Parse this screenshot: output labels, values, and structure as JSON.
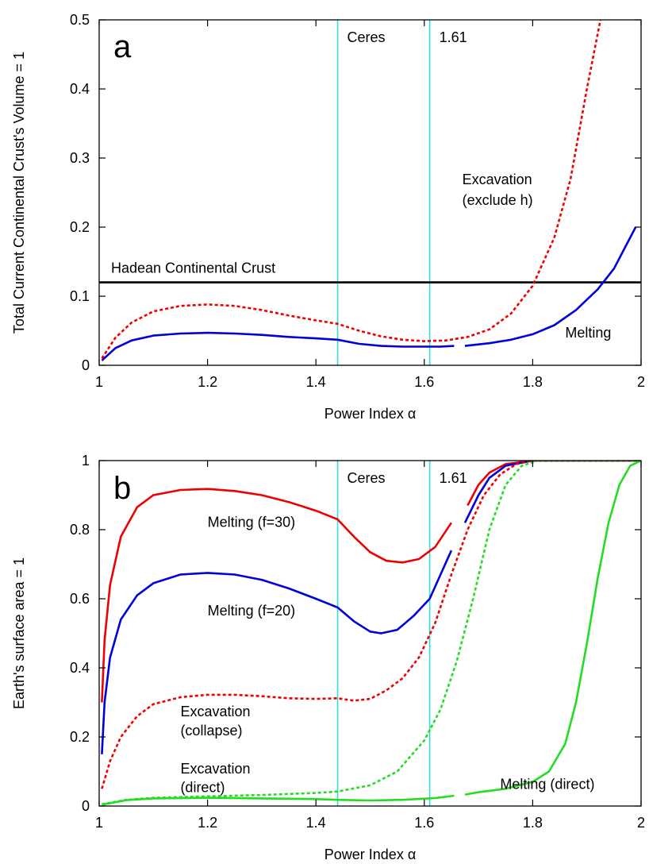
{
  "chart_data": [
    {
      "type": "line",
      "panel_label": "a",
      "xlabel": "Power Index α",
      "ylabel": "Total Current Continental Crust's Volume = 1",
      "xlim": [
        1,
        2
      ],
      "ylim": [
        0,
        0.5
      ],
      "xticks": [
        1,
        1.2,
        1.4,
        1.6,
        1.8,
        2
      ],
      "yticks": [
        0,
        0.1,
        0.2,
        0.3,
        0.4,
        0.5
      ],
      "vlines": [
        {
          "x": 1.44,
          "label": "Ceres",
          "color": "#33dddd"
        },
        {
          "x": 1.61,
          "label": "1.61",
          "color": "#33dddd"
        }
      ],
      "hlines": [
        {
          "y": 0.12,
          "label": "Hadean Continental Crust",
          "color": "#000000"
        }
      ],
      "series": [
        {
          "name": "Excavation (exclude h)",
          "color": "#ee0000",
          "dash": true,
          "segments": [
            [
              [
                1.005,
                0.01
              ],
              [
                1.03,
                0.04
              ],
              [
                1.06,
                0.062
              ],
              [
                1.1,
                0.078
              ],
              [
                1.15,
                0.086
              ],
              [
                1.2,
                0.088
              ],
              [
                1.25,
                0.086
              ],
              [
                1.3,
                0.08
              ],
              [
                1.35,
                0.072
              ],
              [
                1.4,
                0.065
              ],
              [
                1.44,
                0.06
              ],
              [
                1.48,
                0.05
              ],
              [
                1.52,
                0.042
              ],
              [
                1.56,
                0.037
              ],
              [
                1.6,
                0.035
              ],
              [
                1.64,
                0.036
              ],
              [
                1.68,
                0.041
              ],
              [
                1.72,
                0.052
              ],
              [
                1.76,
                0.075
              ],
              [
                1.8,
                0.115
              ],
              [
                1.84,
                0.185
              ],
              [
                1.87,
                0.27
              ],
              [
                1.9,
                0.4
              ],
              [
                1.925,
                0.5
              ]
            ]
          ]
        },
        {
          "name": "Melting",
          "color": "#0000dd",
          "dash": false,
          "segments": [
            [
              [
                1.005,
                0.007
              ],
              [
                1.03,
                0.025
              ],
              [
                1.06,
                0.036
              ],
              [
                1.1,
                0.043
              ],
              [
                1.15,
                0.046
              ],
              [
                1.2,
                0.047
              ],
              [
                1.25,
                0.046
              ],
              [
                1.3,
                0.044
              ],
              [
                1.35,
                0.041
              ],
              [
                1.4,
                0.039
              ],
              [
                1.44,
                0.037
              ],
              [
                1.48,
                0.031
              ],
              [
                1.52,
                0.028
              ],
              [
                1.56,
                0.027
              ],
              [
                1.6,
                0.027
              ],
              [
                1.63,
                0.027
              ],
              [
                1.655,
                0.028
              ]
            ],
            [
              [
                1.675,
                0.028
              ],
              [
                1.72,
                0.032
              ],
              [
                1.76,
                0.037
              ],
              [
                1.8,
                0.045
              ],
              [
                1.84,
                0.058
              ],
              [
                1.88,
                0.08
              ],
              [
                1.92,
                0.11
              ],
              [
                1.95,
                0.14
              ],
              [
                1.97,
                0.17
              ],
              [
                1.99,
                0.2
              ]
            ]
          ]
        }
      ],
      "annotations": [
        {
          "text": "Excavation",
          "x": 1.67,
          "y": 0.262
        },
        {
          "text": "(exclude h)",
          "x": 1.67,
          "y": 0.232
        },
        {
          "text": "Melting",
          "x": 1.86,
          "y": 0.04
        }
      ]
    },
    {
      "type": "line",
      "panel_label": "b",
      "xlabel": "Power Index α",
      "ylabel": "Earth's surface area = 1",
      "xlim": [
        1,
        2
      ],
      "ylim": [
        0,
        1
      ],
      "xticks": [
        1,
        1.2,
        1.4,
        1.6,
        1.8,
        2
      ],
      "yticks": [
        0,
        0.2,
        0.4,
        0.6,
        0.8,
        1
      ],
      "vlines": [
        {
          "x": 1.44,
          "label": "Ceres",
          "color": "#33dddd"
        },
        {
          "x": 1.61,
          "label": "1.61",
          "color": "#33dddd"
        }
      ],
      "series": [
        {
          "name": "Melting (f=30)",
          "color": "#ee0000",
          "dash": false,
          "segments": [
            [
              [
                1.005,
                0.3
              ],
              [
                1.01,
                0.48
              ],
              [
                1.02,
                0.64
              ],
              [
                1.04,
                0.78
              ],
              [
                1.07,
                0.865
              ],
              [
                1.1,
                0.9
              ],
              [
                1.15,
                0.915
              ],
              [
                1.2,
                0.918
              ],
              [
                1.25,
                0.912
              ],
              [
                1.3,
                0.9
              ],
              [
                1.35,
                0.88
              ],
              [
                1.4,
                0.855
              ],
              [
                1.44,
                0.83
              ],
              [
                1.47,
                0.78
              ],
              [
                1.5,
                0.735
              ],
              [
                1.53,
                0.71
              ],
              [
                1.56,
                0.705
              ],
              [
                1.59,
                0.715
              ],
              [
                1.62,
                0.75
              ],
              [
                1.65,
                0.82
              ]
            ],
            [
              [
                1.68,
                0.87
              ],
              [
                1.7,
                0.93
              ],
              [
                1.72,
                0.965
              ],
              [
                1.75,
                0.99
              ],
              [
                1.8,
                1.0
              ],
              [
                2.0,
                1.0
              ]
            ]
          ]
        },
        {
          "name": "Melting (f=20)",
          "color": "#0000dd",
          "dash": false,
          "segments": [
            [
              [
                1.005,
                0.15
              ],
              [
                1.01,
                0.3
              ],
              [
                1.02,
                0.43
              ],
              [
                1.04,
                0.54
              ],
              [
                1.07,
                0.61
              ],
              [
                1.1,
                0.645
              ],
              [
                1.15,
                0.67
              ],
              [
                1.2,
                0.675
              ],
              [
                1.25,
                0.67
              ],
              [
                1.3,
                0.655
              ],
              [
                1.35,
                0.63
              ],
              [
                1.4,
                0.6
              ],
              [
                1.44,
                0.575
              ],
              [
                1.47,
                0.535
              ],
              [
                1.5,
                0.505
              ],
              [
                1.52,
                0.5
              ],
              [
                1.55,
                0.51
              ],
              [
                1.58,
                0.55
              ],
              [
                1.61,
                0.6
              ],
              [
                1.65,
                0.74
              ]
            ],
            [
              [
                1.675,
                0.82
              ],
              [
                1.7,
                0.9
              ],
              [
                1.72,
                0.95
              ],
              [
                1.75,
                0.985
              ],
              [
                1.8,
                1.0
              ],
              [
                2.0,
                1.0
              ]
            ]
          ]
        },
        {
          "name": "Excavation (collapse)",
          "color": "#ee0000",
          "dash": true,
          "segments": [
            [
              [
                1.005,
                0.05
              ],
              [
                1.02,
                0.13
              ],
              [
                1.04,
                0.2
              ],
              [
                1.07,
                0.26
              ],
              [
                1.1,
                0.295
              ],
              [
                1.15,
                0.315
              ],
              [
                1.2,
                0.322
              ],
              [
                1.25,
                0.322
              ],
              [
                1.3,
                0.318
              ],
              [
                1.35,
                0.312
              ],
              [
                1.4,
                0.31
              ],
              [
                1.44,
                0.312
              ],
              [
                1.47,
                0.305
              ],
              [
                1.5,
                0.31
              ],
              [
                1.53,
                0.335
              ],
              [
                1.56,
                0.37
              ],
              [
                1.59,
                0.43
              ],
              [
                1.62,
                0.53
              ],
              [
                1.65,
                0.67
              ],
              [
                1.68,
                0.8
              ],
              [
                1.71,
                0.9
              ],
              [
                1.74,
                0.96
              ],
              [
                1.77,
                0.99
              ],
              [
                1.8,
                1.0
              ],
              [
                2.0,
                1.0
              ]
            ]
          ]
        },
        {
          "name": "Excavation (direct)",
          "color": "#22dd22",
          "dash": true,
          "segments": [
            [
              [
                1.005,
                0.005
              ],
              [
                1.05,
                0.018
              ],
              [
                1.1,
                0.024
              ],
              [
                1.2,
                0.028
              ],
              [
                1.3,
                0.032
              ],
              [
                1.4,
                0.038
              ],
              [
                1.44,
                0.042
              ],
              [
                1.5,
                0.06
              ],
              [
                1.55,
                0.1
              ],
              [
                1.6,
                0.19
              ],
              [
                1.63,
                0.28
              ],
              [
                1.66,
                0.42
              ],
              [
                1.69,
                0.6
              ],
              [
                1.72,
                0.8
              ],
              [
                1.75,
                0.93
              ],
              [
                1.78,
                0.985
              ],
              [
                1.81,
                1.0
              ],
              [
                2.0,
                1.0
              ]
            ]
          ]
        },
        {
          "name": "Melting (direct)",
          "color": "#22dd22",
          "dash": false,
          "segments": [
            [
              [
                1.005,
                0.004
              ],
              [
                1.05,
                0.017
              ],
              [
                1.1,
                0.022
              ],
              [
                1.2,
                0.024
              ],
              [
                1.3,
                0.022
              ],
              [
                1.4,
                0.02
              ],
              [
                1.44,
                0.018
              ],
              [
                1.5,
                0.016
              ],
              [
                1.56,
                0.018
              ],
              [
                1.62,
                0.023
              ],
              [
                1.655,
                0.03
              ]
            ],
            [
              [
                1.675,
                0.033
              ],
              [
                1.7,
                0.04
              ],
              [
                1.75,
                0.05
              ],
              [
                1.8,
                0.07
              ],
              [
                1.83,
                0.1
              ],
              [
                1.86,
                0.18
              ],
              [
                1.88,
                0.3
              ],
              [
                1.9,
                0.47
              ],
              [
                1.92,
                0.66
              ],
              [
                1.94,
                0.82
              ],
              [
                1.96,
                0.93
              ],
              [
                1.98,
                0.985
              ],
              [
                2.0,
                1.0
              ]
            ]
          ]
        }
      ],
      "annotations": [
        {
          "text": "Melting (f=30)",
          "x": 1.2,
          "y": 0.808
        },
        {
          "text": "Melting (f=20)",
          "x": 1.2,
          "y": 0.552
        },
        {
          "text": "Excavation",
          "x": 1.15,
          "y": 0.26
        },
        {
          "text": "(collapse)",
          "x": 1.15,
          "y": 0.205
        },
        {
          "text": "Excavation",
          "x": 1.15,
          "y": 0.094
        },
        {
          "text": "(direct)",
          "x": 1.15,
          "y": 0.04
        },
        {
          "text": "Melting (direct)",
          "x": 1.74,
          "y": 0.05
        }
      ]
    }
  ]
}
